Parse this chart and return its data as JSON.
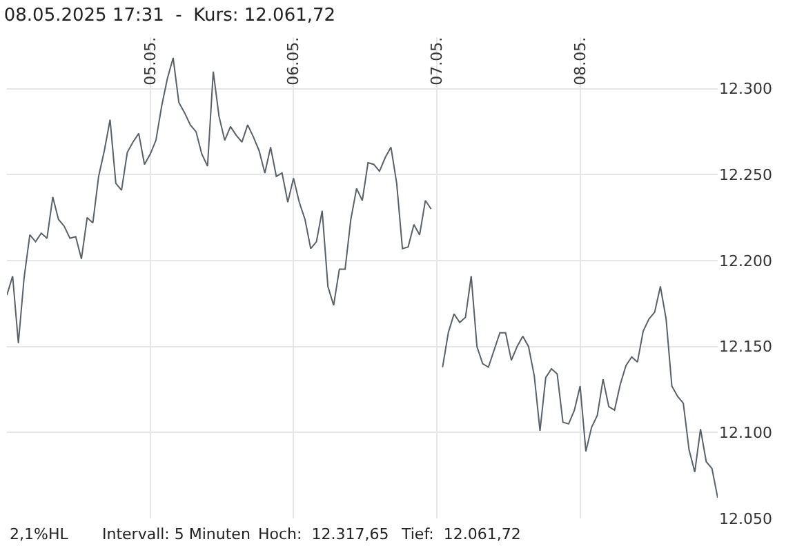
{
  "chart_data": {
    "type": "line",
    "title": "08.05.2025 17:31  -  Kurs: 12.061,72",
    "annotations": [
      "2,1%HL",
      "Intervall: 5 Minuten",
      "Hoch:  12.317,65",
      "Tief:  12.061,72"
    ],
    "categories": [
      null,
      null,
      null,
      null,
      null,
      null,
      null,
      null,
      null,
      null,
      null,
      null,
      null,
      null,
      null,
      null,
      null,
      null,
      null,
      null,
      null,
      null,
      null,
      null,
      null,
      "05.05.",
      null,
      null,
      null,
      null,
      null,
      null,
      null,
      null,
      null,
      null,
      null,
      null,
      null,
      null,
      null,
      null,
      null,
      null,
      null,
      null,
      null,
      null,
      null,
      null,
      "06.05.",
      null,
      null,
      null,
      null,
      null,
      null,
      null,
      null,
      null,
      null,
      null,
      null,
      null,
      null,
      null,
      null,
      null,
      null,
      null,
      null,
      null,
      null,
      null,
      null,
      "07.05.",
      null,
      null,
      null,
      null,
      null,
      null,
      null,
      null,
      null,
      null,
      null,
      null,
      null,
      null,
      null,
      null,
      null,
      null,
      null,
      null,
      null,
      null,
      null,
      null,
      "08.05.",
      null,
      null,
      null,
      null,
      null,
      null,
      null,
      null,
      null,
      null,
      null,
      null,
      null,
      null,
      null,
      null,
      null,
      null,
      null,
      null,
      null,
      null,
      null,
      null
    ],
    "series": [
      {
        "color": "#5a6068",
        "values": [
          12180,
          12191,
          12152,
          12190,
          12215,
          12211,
          12216,
          12213,
          12237,
          12224,
          12220,
          12213,
          12214,
          12201,
          12225,
          12222,
          12249,
          12264,
          12282,
          12245,
          12241,
          12263,
          12269,
          12274,
          12256,
          12262,
          12270,
          12290,
          12306,
          12318,
          12292,
          12286,
          12279,
          12275,
          12262,
          12255,
          12310,
          12284,
          12270,
          12278,
          12273,
          12269,
          12279,
          12272,
          12264,
          12251,
          12266,
          12249,
          12251,
          12234,
          12248,
          12234,
          12224,
          12207,
          12211,
          12229,
          12185,
          12174,
          12195,
          12195,
          12224,
          12242,
          12235,
          12257,
          12256,
          12252,
          12260,
          12266,
          12245,
          12207,
          12208,
          12221,
          12215,
          12235,
          12230,
          null,
          12138,
          12158,
          12169,
          12164,
          12167,
          12191,
          12150,
          12140,
          12138,
          12148,
          12158,
          12158,
          12142,
          12150,
          12156,
          12150,
          12133,
          12101,
          12132,
          12137,
          12134,
          12106,
          12105,
          12113,
          12127,
          12089,
          12103,
          12110,
          12131,
          12115,
          12113,
          12128,
          12139,
          12144,
          12141,
          12159,
          12166,
          12170,
          12185,
          12166,
          12127,
          12121,
          12117,
          12090,
          12077,
          12102,
          12083,
          12079,
          12062
        ]
      }
    ],
    "ylim": [
      12050,
      12330
    ],
    "yticks": [
      {
        "value": 12050,
        "label": "12.050"
      },
      {
        "value": 12100,
        "label": "12.100"
      },
      {
        "value": 12150,
        "label": "12.150"
      },
      {
        "value": 12200,
        "label": "12.200"
      },
      {
        "value": 12250,
        "label": "12.250"
      },
      {
        "value": 12300,
        "label": "12.300"
      }
    ],
    "grid": true,
    "marker": "none",
    "line_style": "solid"
  }
}
